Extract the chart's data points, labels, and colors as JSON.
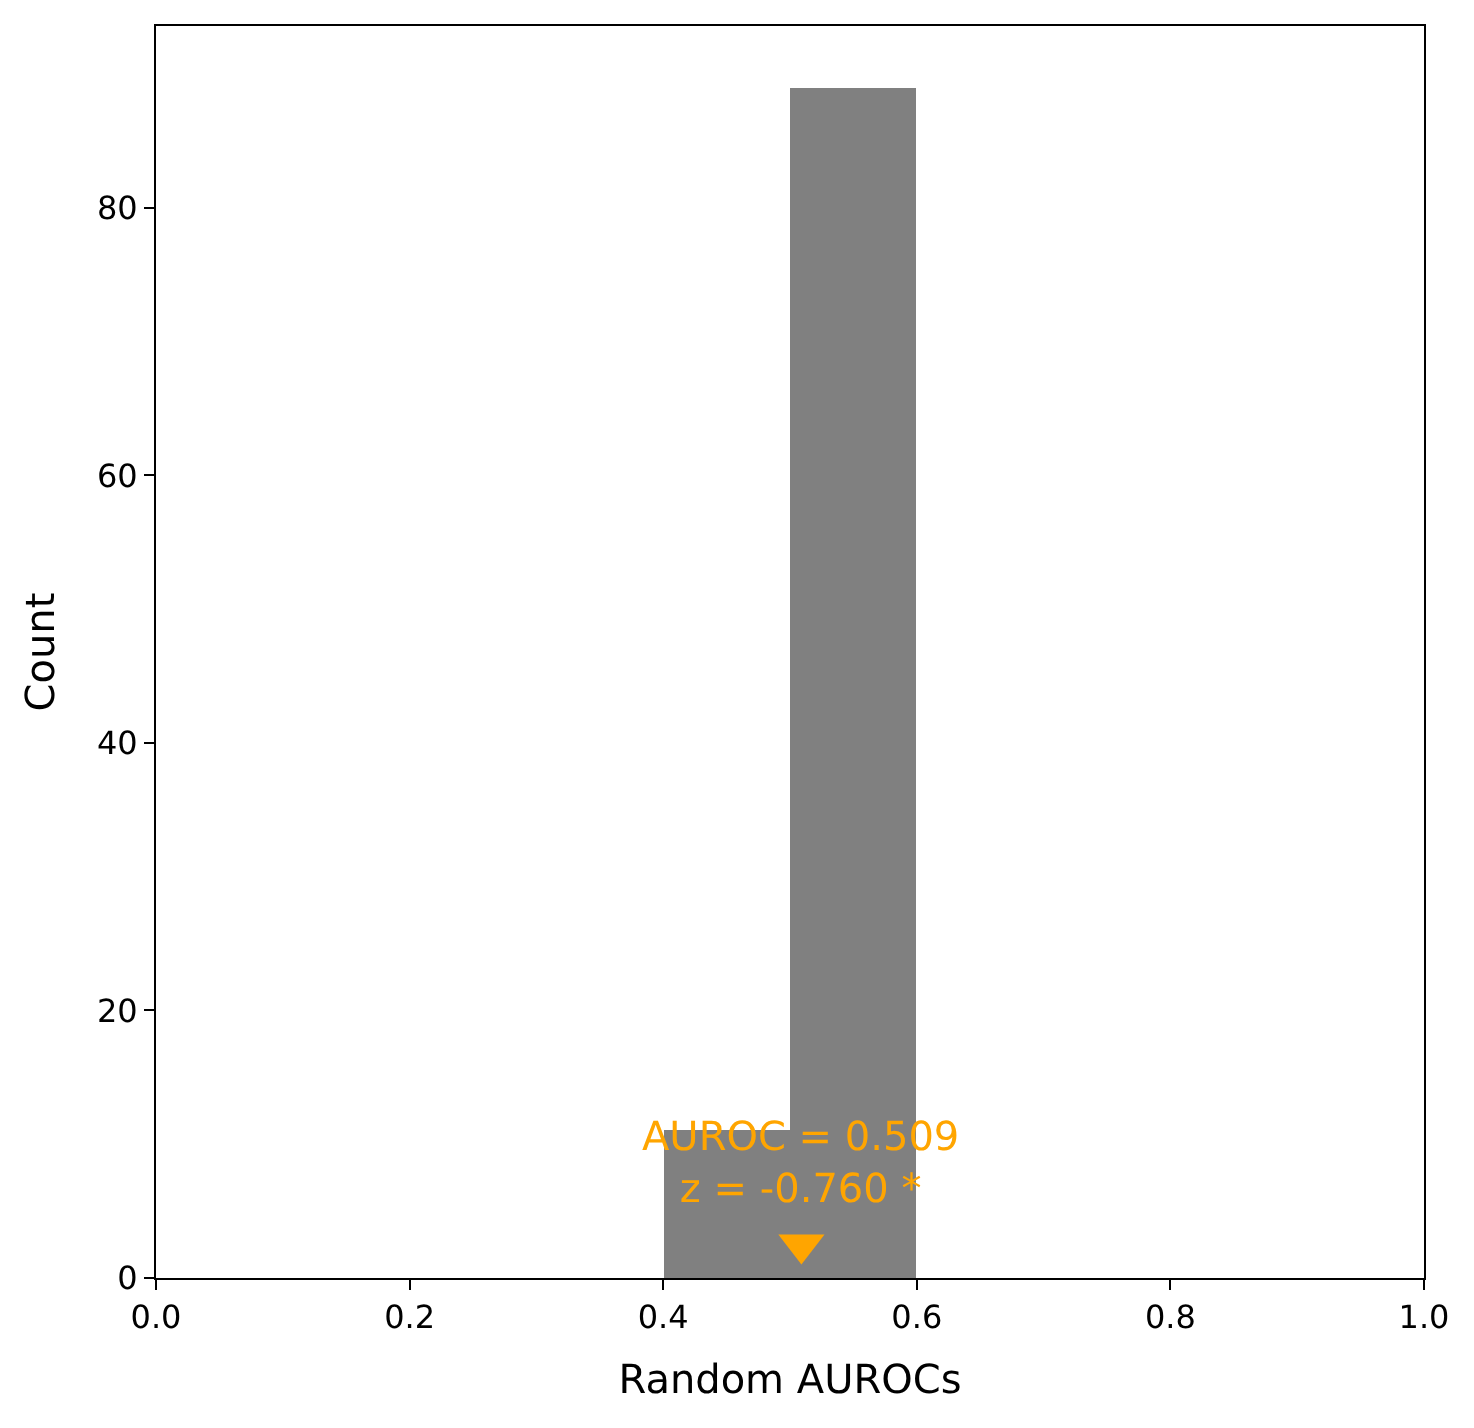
{
  "chart_data": {
    "type": "histogram",
    "xlabel": "Random AUROCs",
    "ylabel": "Count",
    "bins": [
      0.4,
      0.5,
      0.6
    ],
    "values": [
      11,
      89
    ],
    "color": "#808080",
    "series": [
      {
        "type": "scatter",
        "x": [
          0.509
        ],
        "values": [
          2.5
        ],
        "color": "#ffa500",
        "marker": "triangle"
      }
    ],
    "annotations": [
      "AUROC = 0.509\nz = -0.760 *"
    ],
    "xlim": [
      0,
      1
    ],
    "xticks": [
      {
        "value": 0,
        "label": "0.0"
      },
      {
        "value": 0.2,
        "label": "0.2"
      },
      {
        "value": 0.4,
        "label": "0.4"
      },
      {
        "value": 0.6,
        "label": "0.6"
      },
      {
        "value": 0.8,
        "label": "0.8"
      },
      {
        "value": 1,
        "label": "1.0"
      }
    ],
    "ylim": [
      0,
      93.6
    ],
    "yticks": [
      0,
      20,
      40,
      60,
      80
    ]
  }
}
